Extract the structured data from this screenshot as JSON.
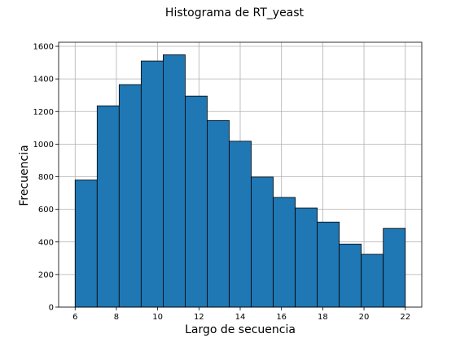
{
  "chart_data": {
    "type": "bar",
    "title": "Histograma de RT_yeast",
    "xlabel": "Largo de secuencia",
    "ylabel": "Frecuencia",
    "bin_edges": [
      6.0,
      7.067,
      8.133,
      9.2,
      10.267,
      11.333,
      12.4,
      13.467,
      14.533,
      15.6,
      16.667,
      17.733,
      18.8,
      19.867,
      20.933,
      22.0
    ],
    "values": [
      780,
      1235,
      1365,
      1510,
      1548,
      1295,
      1145,
      1018,
      798,
      673,
      608,
      522,
      387,
      324,
      483
    ],
    "xlim": [
      5.2,
      22.8
    ],
    "ylim": [
      0,
      1625
    ],
    "xticks": [
      6,
      8,
      10,
      12,
      14,
      16,
      18,
      20,
      22
    ],
    "yticks": [
      0,
      200,
      400,
      600,
      800,
      1000,
      1200,
      1400,
      1600
    ],
    "grid": true,
    "bar_color": "#1f77b4",
    "edge_color": "#000000",
    "grid_color": "#b0b0b0"
  }
}
